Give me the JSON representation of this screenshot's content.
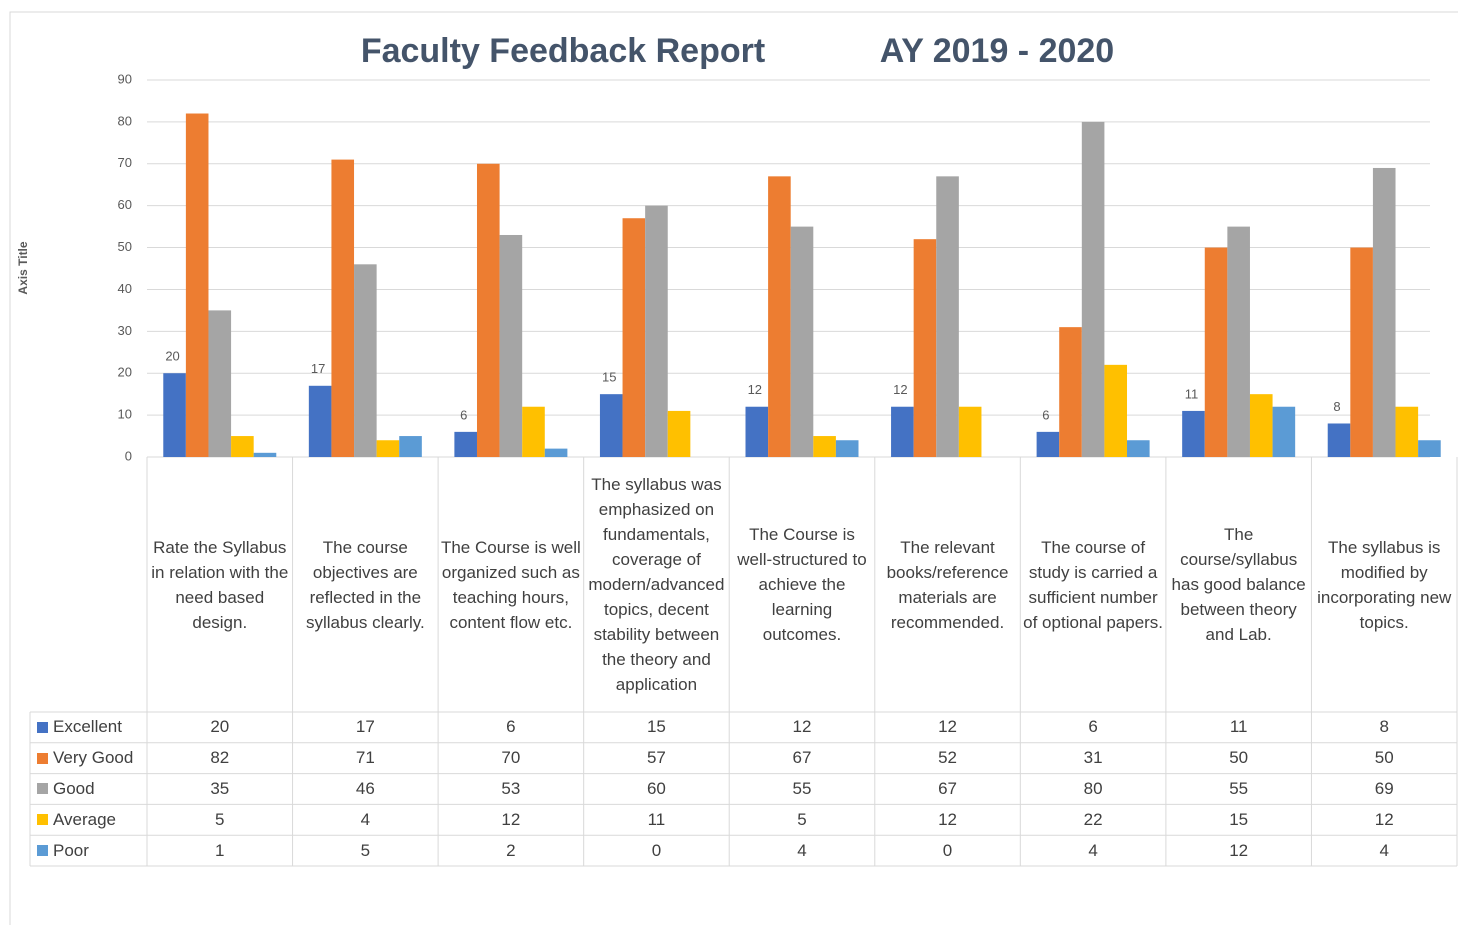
{
  "chart_data": {
    "type": "bar",
    "title": "Faculty Feedback Report",
    "subtitle": "AY 2019 - 2020",
    "y_axis_label": "Axis Title",
    "categories": [
      "Rate the Syllabus in relation with the need based design.",
      "The course objectives are reflected in the syllabus clearly.",
      "The Course is well organized such as teaching hours, content flow etc.",
      "The syllabus was emphasized on fundamentals, coverage of modern/advanced topics, decent stability between the theory and application",
      "The Course is well-structured to achieve the learning outcomes.",
      "The relevant books/reference materials are recommended.",
      "The course of study is carried a sufficient number of optional papers.",
      "The course/syllabus has good balance between theory and Lab.",
      "The syllabus is modified by incorporating new topics."
    ],
    "series": [
      {
        "name": "Excellent",
        "color": "#4472c4",
        "values": [
          20,
          17,
          6,
          15,
          12,
          12,
          6,
          11,
          8
        ],
        "data_labels": true
      },
      {
        "name": "Very Good",
        "color": "#ed7d31",
        "values": [
          82,
          71,
          70,
          57,
          67,
          52,
          31,
          50,
          50
        ]
      },
      {
        "name": "Good",
        "color": "#a5a5a5",
        "values": [
          35,
          46,
          53,
          60,
          55,
          67,
          80,
          55,
          69
        ]
      },
      {
        "name": "Average",
        "color": "#ffc000",
        "values": [
          5,
          4,
          12,
          11,
          5,
          12,
          22,
          15,
          12
        ]
      },
      {
        "name": "Poor",
        "color": "#5b9bd5",
        "values": [
          1,
          5,
          2,
          0,
          4,
          0,
          4,
          12,
          4
        ]
      }
    ],
    "ylim": [
      0,
      90
    ],
    "yticks": [
      0,
      10,
      20,
      30,
      40,
      50,
      60,
      70,
      80,
      90
    ],
    "grid": true,
    "data_table": true
  }
}
